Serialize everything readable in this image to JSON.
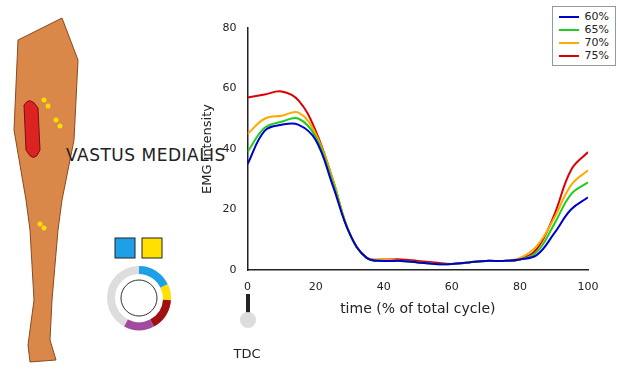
{
  "chart_data": {
    "type": "line",
    "title": "VASTUS MEDIALIS",
    "x_label": "time (% of total cycle)",
    "y_label": "EMG intensity",
    "annotations": [
      "TDC"
    ],
    "x": [
      0,
      5,
      10,
      15,
      20,
      25,
      30,
      35,
      40,
      45,
      50,
      55,
      60,
      65,
      70,
      75,
      80,
      85,
      90,
      95,
      100
    ],
    "series": [
      {
        "name": "60%",
        "color": "#0000cc",
        "values": [
          35,
          46,
          48,
          48,
          43,
          28,
          12,
          4,
          3,
          3,
          2.5,
          2,
          2,
          2.5,
          3,
          3,
          3.5,
          5,
          12,
          20,
          24
        ]
      },
      {
        "name": "65%",
        "color": "#22cc22",
        "values": [
          39,
          47,
          49,
          50,
          44,
          29,
          12,
          4,
          3,
          3,
          2.5,
          2,
          2,
          2.5,
          3,
          3,
          3.5,
          6,
          15,
          25,
          29
        ]
      },
      {
        "name": "70%",
        "color": "#ffaa00",
        "values": [
          45,
          50,
          51,
          52,
          45,
          30,
          12,
          4,
          3.5,
          3,
          2.5,
          2,
          2,
          2.5,
          3,
          3,
          4,
          8,
          17,
          28,
          33
        ]
      },
      {
        "name": "75%",
        "color": "#dd0000",
        "values": [
          57,
          58,
          59,
          56,
          46,
          30,
          12,
          4,
          3.5,
          3.5,
          3,
          2.5,
          2,
          2.5,
          3,
          3,
          3.5,
          7,
          18,
          33,
          39
        ]
      }
    ],
    "xlim": [
      0,
      100
    ],
    "xticks": [
      0,
      20,
      40,
      60,
      80,
      100
    ],
    "ylim": [
      0,
      80
    ],
    "yticks": [
      0,
      20,
      40,
      60,
      80
    ],
    "grid": false,
    "legend": "upper right"
  }
}
